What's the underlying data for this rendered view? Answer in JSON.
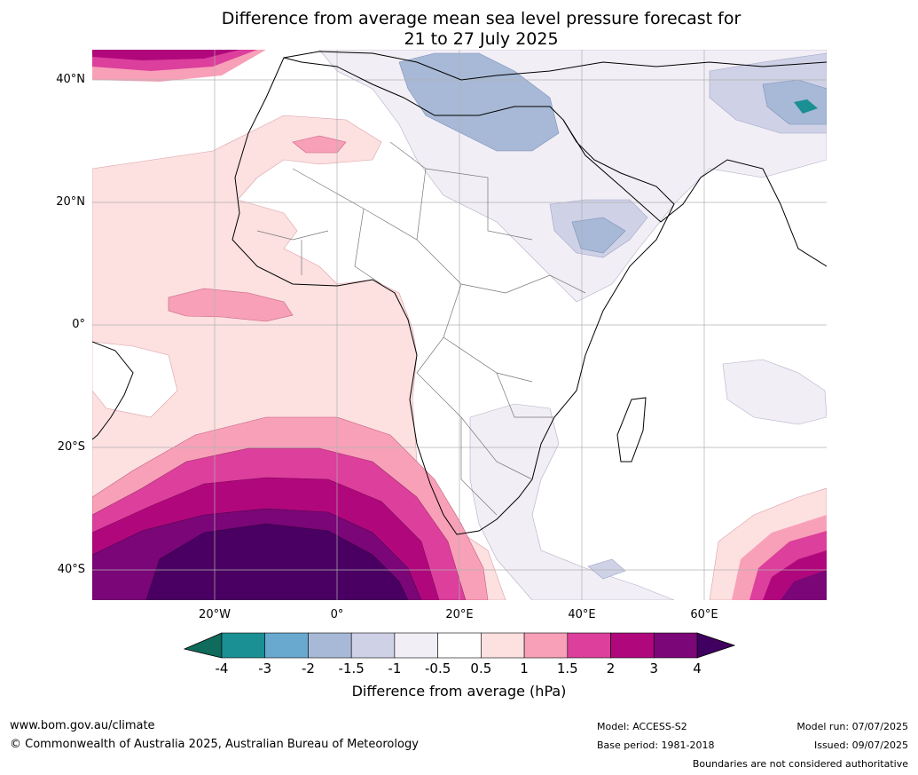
{
  "title_line1": "Difference from average mean sea level pressure forecast for",
  "title_line2": "21 to 27 July 2025",
  "lat_labels": [
    "40°N",
    "20°N",
    "0°",
    "20°S",
    "40°S"
  ],
  "lon_labels": [
    "20°W",
    "0°",
    "20°E",
    "40°E",
    "60°E"
  ],
  "colorbar": {
    "ticks": [
      "-4",
      "-3",
      "-2",
      "-1.5",
      "-1",
      "-0.5",
      "0.5",
      "1",
      "1.5",
      "2",
      "3",
      "4"
    ],
    "label": "Difference from average (hPa)",
    "colors": [
      "#1a8f94",
      "#6aa9cf",
      "#a7b9d6",
      "#cfd1e6",
      "#f2eef5",
      "#ffffff",
      "#fde0e0",
      "#f8a0b8",
      "#dc3f9c",
      "#b0087c",
      "#7a0677"
    ],
    "under_color": "#0f6b5c",
    "over_color": "#3f0060"
  },
  "footer": {
    "website": "www.bom.gov.au/climate",
    "copyright": "© Commonwealth of Australia 2025, Australian Bureau of Meteorology",
    "model": "Model: ACCESS-S2",
    "base_period": "Base period: 1981-2018",
    "model_run": "Model run: 07/07/2025",
    "issued": "Issued: 09/07/2025",
    "disclaimer": "Boundaries are not considered authoritative"
  }
}
